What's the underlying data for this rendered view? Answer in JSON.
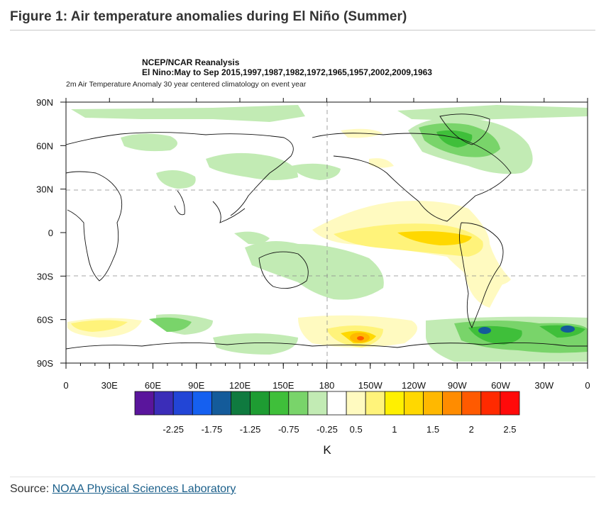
{
  "page": {
    "figure_title": "Figure 1: Air temperature anomalies during El Niño (Summer)",
    "source_label": "Source:",
    "source_link": "NOAA Physical Sciences Laboratory"
  },
  "map": {
    "title_line1": "NCEP/NCAR Reanalysis",
    "title_line2": "El Nino:May to Sep 2015,1997,1987,1982,1972,1965,1957,2002,2009,1963",
    "subtitle": "2m Air Temperature Anomaly 30 year centered climatology on event year",
    "projection": "cylindrical equidistant, 0–360E",
    "lat_ticks": [
      "90N",
      "60N",
      "30N",
      "0",
      "30S",
      "60S",
      "90S"
    ],
    "lon_ticks": [
      "0",
      "30E",
      "60E",
      "90E",
      "120E",
      "150E",
      "180",
      "150W",
      "120W",
      "90W",
      "60W",
      "30W",
      "0"
    ],
    "colorbar": {
      "colors": [
        "#5a159c",
        "#3b2db8",
        "#2245d6",
        "#1560f0",
        "#145b9a",
        "#0f7a3f",
        "#1e9c32",
        "#3fbf3a",
        "#79d46a",
        "#c2ebb4",
        "#ffffff",
        "#fffac0",
        "#fff37a",
        "#fff000",
        "#ffd800",
        "#ffb800",
        "#ff8c00",
        "#ff5a00",
        "#ff2a00",
        "#ff0a0a"
      ],
      "labels": [
        "-2.25",
        "-1.75",
        "-1.25",
        "-0.75",
        "-0.25",
        "0.5",
        "1",
        "1.5",
        "2",
        "2.5"
      ],
      "unit": "K"
    }
  }
}
